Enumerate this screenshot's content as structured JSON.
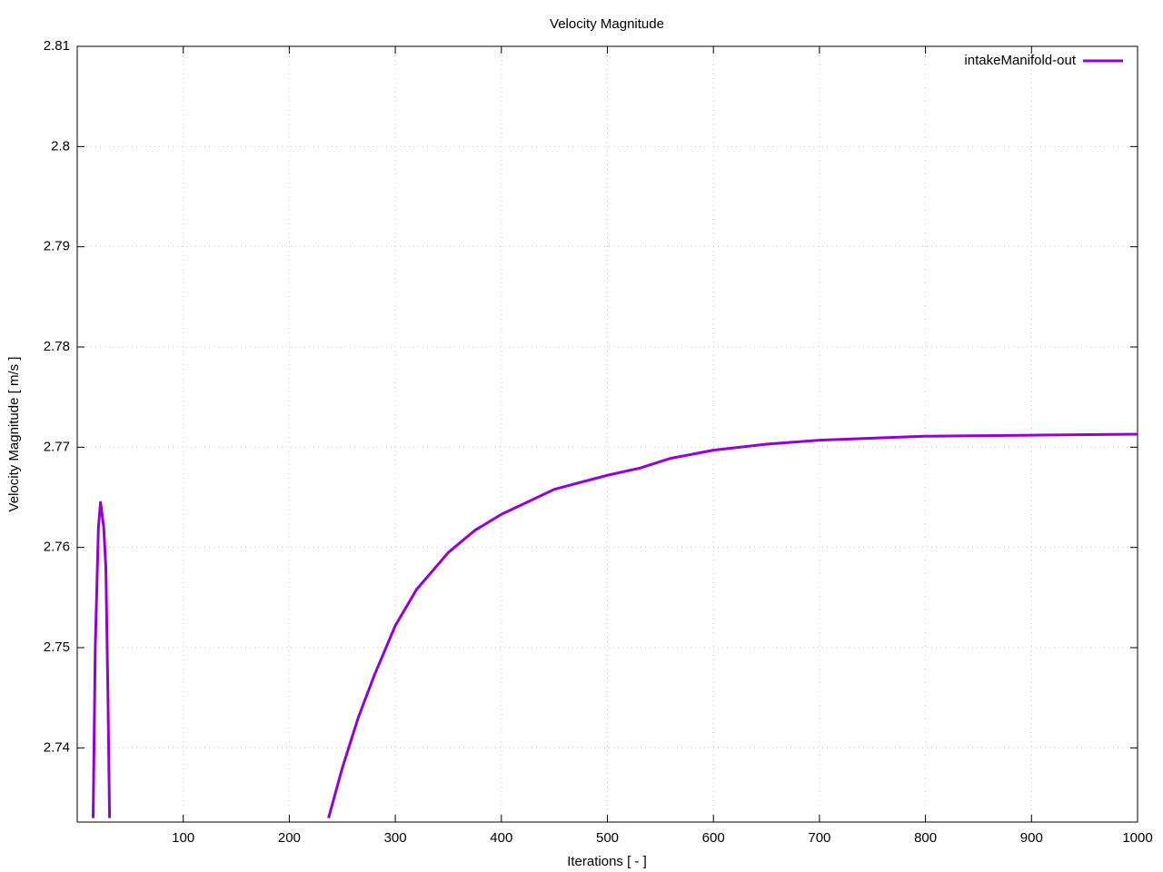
{
  "chart_data": {
    "type": "line",
    "title": "Velocity Magnitude",
    "x_label": "Iterations [ - ]",
    "y_label": "Velocity Magnitude [ m/s ]",
    "x": [
      15,
      17,
      20,
      22,
      25,
      27,
      29,
      30.5,
      100,
      237,
      250,
      265,
      280,
      300,
      320,
      350,
      375,
      400,
      450,
      500,
      530,
      560,
      600,
      650,
      700,
      750,
      800,
      900,
      1000
    ],
    "series": [
      {
        "name": "intakeManifold-out",
        "color": "#9400d3",
        "values": [
          2.733,
          2.75,
          2.762,
          2.7645,
          2.762,
          2.758,
          2.745,
          2.733,
          null,
          2.733,
          2.738,
          2.743,
          2.7472,
          2.7522,
          2.7558,
          2.7595,
          2.7617,
          2.7633,
          2.7658,
          2.7672,
          2.7679,
          2.7689,
          2.7697,
          2.7703,
          2.7707,
          2.7709,
          2.7711,
          2.7712,
          2.7713
        ]
      }
    ],
    "xlim": [
      0,
      1000
    ],
    "xticks": [
      100,
      200,
      300,
      400,
      500,
      600,
      700,
      800,
      900,
      1000
    ],
    "ylim": [
      2.7326,
      2.81
    ],
    "yticks": [
      2.74,
      2.75,
      2.76,
      2.77,
      2.78,
      2.79,
      2.8,
      2.81
    ],
    "grid": true,
    "legend": "top-right"
  }
}
